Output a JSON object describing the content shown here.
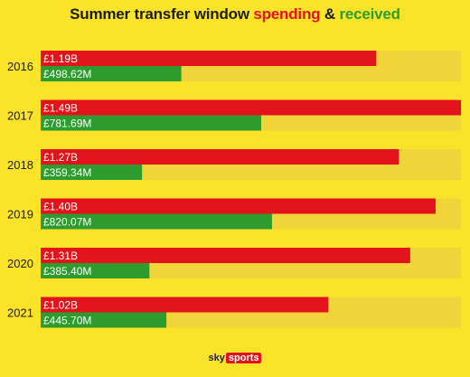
{
  "title": {
    "part1": "Summer transfer window ",
    "part2": "spending",
    "part3": " & ",
    "part4": "received"
  },
  "logo": {
    "sky": "sky",
    "sports": "sports"
  },
  "colors": {
    "background": "#fbe32a",
    "track": "#f1d43a",
    "spending": "#e3131b",
    "received": "#2e9b2e",
    "text": "#1c1c1c"
  },
  "chart_data": {
    "type": "bar",
    "orientation": "horizontal",
    "categories": [
      "2016",
      "2017",
      "2018",
      "2019",
      "2020",
      "2021"
    ],
    "series": [
      {
        "name": "spending",
        "values": [
          1.19,
          1.49,
          1.27,
          1.4,
          1.31,
          1.02
        ],
        "labels": [
          "£1.19B",
          "£1.49B",
          "£1.27B",
          "£1.40B",
          "£1.31B",
          "£1.02B"
        ]
      },
      {
        "name": "received",
        "values": [
          0.49862,
          0.78169,
          0.35934,
          0.82007,
          0.3854,
          0.4457
        ],
        "labels": [
          "£498.62M",
          "£781.69M",
          "£359.34M",
          "£820.07M",
          "£385.40M",
          "£445.70M"
        ]
      }
    ],
    "unit": "£B",
    "xlim": [
      0,
      1.49
    ],
    "grid": false
  }
}
